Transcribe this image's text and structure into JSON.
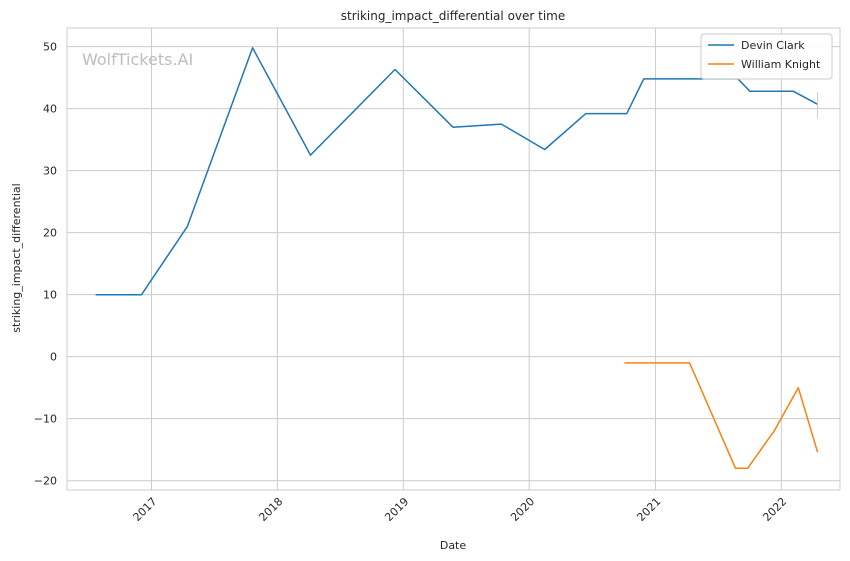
{
  "chart_data": {
    "type": "line",
    "title": "striking_impact_differential over time",
    "xlabel": "Date",
    "ylabel": "striking_impact_differential",
    "watermark": "WolfTickets.AI",
    "xlim": [
      "2016-05-01",
      "2022-06-20"
    ],
    "ylim": [
      -21.5,
      53
    ],
    "x_ticks": [
      "2017-01-01",
      "2018-01-01",
      "2019-01-01",
      "2020-01-01",
      "2021-01-01",
      "2022-01-01"
    ],
    "x_tick_labels": [
      "2017",
      "2018",
      "2019",
      "2020",
      "2021",
      "2022"
    ],
    "y_ticks": [
      -20,
      -10,
      0,
      10,
      20,
      30,
      40,
      50
    ],
    "y_tick_labels": [
      "−20",
      "−10",
      "0",
      "10",
      "20",
      "30",
      "40",
      "50"
    ],
    "grid": true,
    "legend_position": "top-right",
    "series": [
      {
        "name": "Devin Clark",
        "color": "#1f77b4",
        "points": [
          {
            "x": "2016-07-23",
            "y": 10
          },
          {
            "x": "2016-12-03",
            "y": 10
          },
          {
            "x": "2017-04-15",
            "y": 21
          },
          {
            "x": "2017-10-21",
            "y": 49.8
          },
          {
            "x": "2018-04-07",
            "y": 32.5
          },
          {
            "x": "2018-12-08",
            "y": 46.3
          },
          {
            "x": "2019-05-25",
            "y": 37
          },
          {
            "x": "2019-10-12",
            "y": 37.5
          },
          {
            "x": "2020-02-15",
            "y": 33.4
          },
          {
            "x": "2020-06-13",
            "y": 39.2
          },
          {
            "x": "2020-10-10",
            "y": 39.2
          },
          {
            "x": "2020-11-28",
            "y": 44.8
          },
          {
            "x": "2021-08-28",
            "y": 44.8
          },
          {
            "x": "2021-10-02",
            "y": 42.8
          },
          {
            "x": "2022-02-05",
            "y": 42.8
          },
          {
            "x": "2022-04-16",
            "y": 40.7
          }
        ]
      },
      {
        "name": "William Knight",
        "color": "#ff7f0e",
        "points": [
          {
            "x": "2020-10-03",
            "y": -1
          },
          {
            "x": "2021-04-10",
            "y": -1
          },
          {
            "x": "2021-08-21",
            "y": -18
          },
          {
            "x": "2021-09-25",
            "y": -18
          },
          {
            "x": "2021-12-11",
            "y": -12
          },
          {
            "x": "2022-02-19",
            "y": -5
          },
          {
            "x": "2022-04-16",
            "y": -15.4
          }
        ]
      }
    ]
  }
}
